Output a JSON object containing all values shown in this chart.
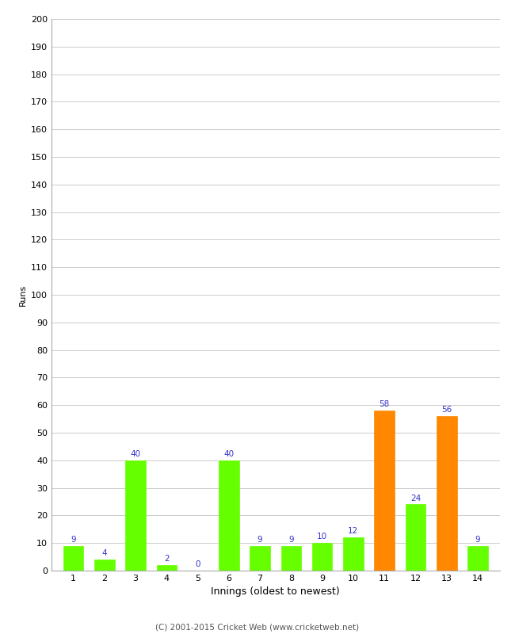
{
  "categories": [
    "1",
    "2",
    "3",
    "4",
    "5",
    "6",
    "7",
    "8",
    "9",
    "10",
    "11",
    "12",
    "13",
    "14"
  ],
  "values": [
    9,
    4,
    40,
    2,
    0,
    40,
    9,
    9,
    10,
    12,
    58,
    24,
    56,
    9
  ],
  "bar_colors": [
    "#66ff00",
    "#66ff00",
    "#66ff00",
    "#66ff00",
    "#66ff00",
    "#66ff00",
    "#66ff00",
    "#66ff00",
    "#66ff00",
    "#66ff00",
    "#ff8800",
    "#66ff00",
    "#ff8800",
    "#66ff00"
  ],
  "xlabel": "Innings (oldest to newest)",
  "ylabel": "Runs",
  "ylim": [
    0,
    200
  ],
  "yticks": [
    0,
    10,
    20,
    30,
    40,
    50,
    60,
    70,
    80,
    90,
    100,
    110,
    120,
    130,
    140,
    150,
    160,
    170,
    180,
    190,
    200
  ],
  "label_color": "#3333cc",
  "label_fontsize": 7.5,
  "footer": "(C) 2001-2015 Cricket Web (www.cricketweb.net)",
  "background_color": "#ffffff",
  "grid_color": "#cccccc",
  "bar_width": 0.65
}
